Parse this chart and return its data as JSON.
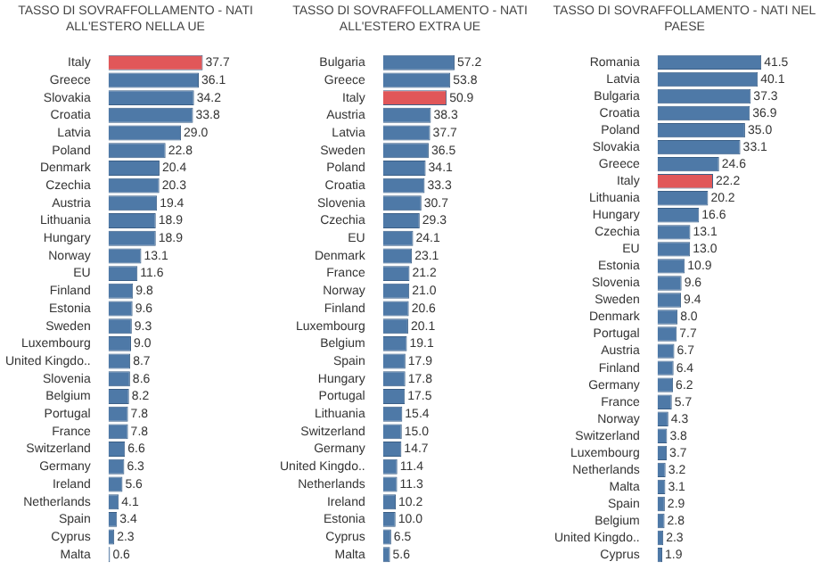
{
  "chart_data": [
    {
      "type": "bar",
      "orientation": "horizontal",
      "title": "TASSO DI SOVRAFFOLLAMENTO - NATI ALL'ESTERO NELLA UE",
      "tick_labels": "y",
      "categories": [
        "Italy",
        "Greece",
        "Slovakia",
        "Croatia",
        "Latvia",
        "Poland",
        "Denmark",
        "Czechia",
        "Austria",
        "Lithuania",
        "Hungary",
        "Norway",
        "EU",
        "Finland",
        "Estonia",
        "Sweden",
        "Luxembourg",
        "United Kingdo..",
        "Slovenia",
        "Belgium",
        "Portugal",
        "France",
        "Switzerland",
        "Germany",
        "Ireland",
        "Netherlands",
        "Spain",
        "Cyprus",
        "Malta"
      ],
      "values": [
        37.7,
        36.1,
        34.2,
        33.8,
        29.0,
        22.8,
        20.4,
        20.3,
        19.4,
        18.9,
        18.9,
        13.1,
        11.6,
        9.8,
        9.6,
        9.3,
        9.0,
        8.7,
        8.6,
        8.2,
        7.8,
        7.8,
        6.6,
        6.3,
        5.6,
        4.1,
        3.4,
        2.3,
        0.6
      ],
      "value_labels": [
        "37.7",
        "36.1",
        "34.2",
        "33.8",
        "29.0",
        "22.8",
        "20.4",
        "20.3",
        "19.4",
        "18.9",
        "18.9",
        "13.1",
        "11.6",
        "9.8",
        "9.6",
        "9.3",
        "9.0",
        "8.7",
        "8.6",
        "8.2",
        "7.8",
        "7.8",
        "6.6",
        "6.3",
        "5.6",
        "4.1",
        "3.4",
        "2.3",
        "0.6"
      ],
      "colors": [
        "#e15759",
        "#4e79a7",
        "#4e79a7",
        "#4e79a7",
        "#4e79a7",
        "#4e79a7",
        "#4e79a7",
        "#4e79a7",
        "#4e79a7",
        "#4e79a7",
        "#4e79a7",
        "#4e79a7",
        "#4e79a7",
        "#4e79a7",
        "#4e79a7",
        "#4e79a7",
        "#4e79a7",
        "#4e79a7",
        "#4e79a7",
        "#4e79a7",
        "#4e79a7",
        "#4e79a7",
        "#4e79a7",
        "#4e79a7",
        "#4e79a7",
        "#4e79a7",
        "#4e79a7",
        "#4e79a7",
        "#4e79a7"
      ]
    },
    {
      "type": "bar",
      "orientation": "horizontal",
      "title": "TASSO DI SOVRAFFOLLAMENTO - NATI ALL'ESTERO EXTRA UE",
      "tick_labels": "y",
      "categories": [
        "Bulgaria",
        "Greece",
        "Italy",
        "Austria",
        "Latvia",
        "Sweden",
        "Poland",
        "Croatia",
        "Slovenia",
        "Czechia",
        "EU",
        "Denmark",
        "France",
        "Norway",
        "Finland",
        "Luxembourg",
        "Belgium",
        "Spain",
        "Hungary",
        "Portugal",
        "Lithuania",
        "Switzerland",
        "Germany",
        "United Kingdo..",
        "Netherlands",
        "Ireland",
        "Estonia",
        "Cyprus",
        "Malta"
      ],
      "values": [
        57.2,
        53.8,
        50.9,
        38.3,
        37.7,
        36.5,
        34.1,
        33.3,
        30.7,
        29.3,
        24.1,
        23.1,
        21.2,
        21.0,
        20.6,
        20.1,
        19.1,
        17.9,
        17.8,
        17.5,
        15.4,
        15.0,
        14.7,
        11.4,
        11.3,
        10.2,
        10.0,
        6.5,
        5.6
      ],
      "value_labels": [
        "57.2",
        "53.8",
        "50.9",
        "38.3",
        "37.7",
        "36.5",
        "34.1",
        "33.3",
        "30.7",
        "29.3",
        "24.1",
        "23.1",
        "21.2",
        "21.0",
        "20.6",
        "20.1",
        "19.1",
        "17.9",
        "17.8",
        "17.5",
        "15.4",
        "15.0",
        "14.7",
        "11.4",
        "11.3",
        "10.2",
        "10.0",
        "6.5",
        "5.6"
      ],
      "colors": [
        "#4e79a7",
        "#4e79a7",
        "#e15759",
        "#4e79a7",
        "#4e79a7",
        "#4e79a7",
        "#4e79a7",
        "#4e79a7",
        "#4e79a7",
        "#4e79a7",
        "#4e79a7",
        "#4e79a7",
        "#4e79a7",
        "#4e79a7",
        "#4e79a7",
        "#4e79a7",
        "#4e79a7",
        "#4e79a7",
        "#4e79a7",
        "#4e79a7",
        "#4e79a7",
        "#4e79a7",
        "#4e79a7",
        "#4e79a7",
        "#4e79a7",
        "#4e79a7",
        "#4e79a7",
        "#4e79a7",
        "#4e79a7"
      ]
    },
    {
      "type": "bar",
      "orientation": "horizontal",
      "title": "TASSO DI SOVRAFFOLLAMENTO - NATI NEL PAESE",
      "tick_labels": "y",
      "categories": [
        "Romania",
        "Latvia",
        "Bulgaria",
        "Croatia",
        "Poland",
        "Slovakia",
        "Greece",
        "Italy",
        "Lithuania",
        "Hungary",
        "Czechia",
        "EU",
        "Estonia",
        "Slovenia",
        "Sweden",
        "Denmark",
        "Portugal",
        "Austria",
        "Finland",
        "Germany",
        "France",
        "Norway",
        "Switzerland",
        "Luxembourg",
        "Netherlands",
        "Malta",
        "Spain",
        "Belgium",
        "United Kingdo..",
        "Cyprus"
      ],
      "values": [
        41.5,
        40.1,
        37.3,
        36.9,
        35.0,
        33.1,
        24.6,
        22.2,
        20.2,
        16.6,
        13.1,
        13.0,
        10.9,
        9.6,
        9.4,
        8.0,
        7.7,
        6.7,
        6.4,
        6.2,
        5.7,
        4.3,
        3.8,
        3.7,
        3.2,
        3.1,
        2.9,
        2.8,
        2.3,
        1.9
      ],
      "value_labels": [
        "41.5",
        "40.1",
        "37.3",
        "36.9",
        "35.0",
        "33.1",
        "24.6",
        "22.2",
        "20.2",
        "16.6",
        "13.1",
        "13.0",
        "10.9",
        "9.6",
        "9.4",
        "8.0",
        "7.7",
        "6.7",
        "6.4",
        "6.2",
        "5.7",
        "4.3",
        "3.8",
        "3.7",
        "3.2",
        "3.1",
        "2.9",
        "2.8",
        "2.3",
        "1.9"
      ],
      "colors": [
        "#4e79a7",
        "#4e79a7",
        "#4e79a7",
        "#4e79a7",
        "#4e79a7",
        "#4e79a7",
        "#4e79a7",
        "#e15759",
        "#4e79a7",
        "#4e79a7",
        "#4e79a7",
        "#4e79a7",
        "#4e79a7",
        "#4e79a7",
        "#4e79a7",
        "#4e79a7",
        "#4e79a7",
        "#4e79a7",
        "#4e79a7",
        "#4e79a7",
        "#4e79a7",
        "#4e79a7",
        "#4e79a7",
        "#4e79a7",
        "#4e79a7",
        "#4e79a7",
        "#4e79a7",
        "#4e79a7",
        "#4e79a7",
        "#4e79a7"
      ]
    }
  ]
}
